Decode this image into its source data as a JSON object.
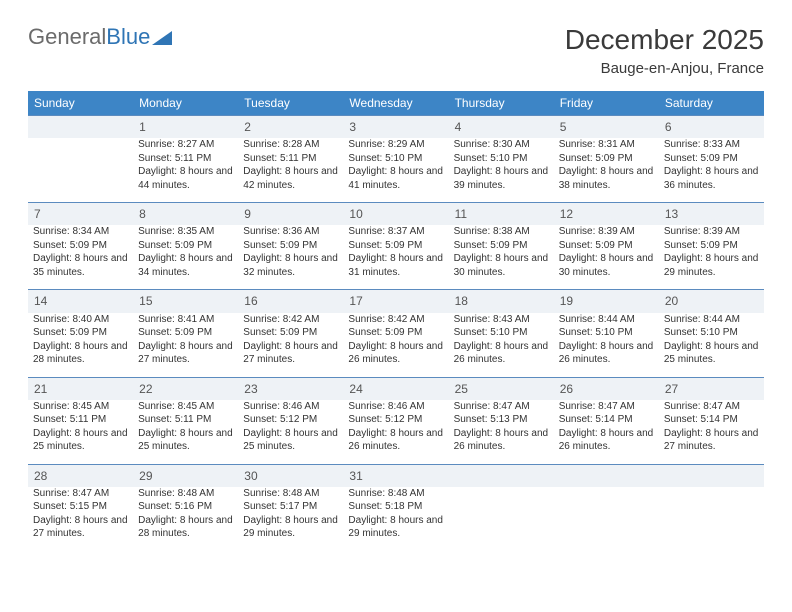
{
  "brand": {
    "part1": "General",
    "part2": "Blue"
  },
  "title": "December 2025",
  "location": "Bauge-en-Anjou, France",
  "colors": {
    "header_bg": "#3d85c6",
    "header_text": "#ffffff",
    "daynum_bg": "#eef2f6",
    "row_border": "#5b8bbf",
    "text": "#333333",
    "brand_gray": "#6b6b6b",
    "brand_blue": "#2f75b5"
  },
  "weekdays": [
    "Sunday",
    "Monday",
    "Tuesday",
    "Wednesday",
    "Thursday",
    "Friday",
    "Saturday"
  ],
  "weeks": [
    {
      "nums": [
        "",
        "1",
        "2",
        "3",
        "4",
        "5",
        "6"
      ],
      "cells": [
        null,
        {
          "sunrise": "Sunrise: 8:27 AM",
          "sunset": "Sunset: 5:11 PM",
          "daylight": "Daylight: 8 hours and 44 minutes."
        },
        {
          "sunrise": "Sunrise: 8:28 AM",
          "sunset": "Sunset: 5:11 PM",
          "daylight": "Daylight: 8 hours and 42 minutes."
        },
        {
          "sunrise": "Sunrise: 8:29 AM",
          "sunset": "Sunset: 5:10 PM",
          "daylight": "Daylight: 8 hours and 41 minutes."
        },
        {
          "sunrise": "Sunrise: 8:30 AM",
          "sunset": "Sunset: 5:10 PM",
          "daylight": "Daylight: 8 hours and 39 minutes."
        },
        {
          "sunrise": "Sunrise: 8:31 AM",
          "sunset": "Sunset: 5:09 PM",
          "daylight": "Daylight: 8 hours and 38 minutes."
        },
        {
          "sunrise": "Sunrise: 8:33 AM",
          "sunset": "Sunset: 5:09 PM",
          "daylight": "Daylight: 8 hours and 36 minutes."
        }
      ]
    },
    {
      "nums": [
        "7",
        "8",
        "9",
        "10",
        "11",
        "12",
        "13"
      ],
      "cells": [
        {
          "sunrise": "Sunrise: 8:34 AM",
          "sunset": "Sunset: 5:09 PM",
          "daylight": "Daylight: 8 hours and 35 minutes."
        },
        {
          "sunrise": "Sunrise: 8:35 AM",
          "sunset": "Sunset: 5:09 PM",
          "daylight": "Daylight: 8 hours and 34 minutes."
        },
        {
          "sunrise": "Sunrise: 8:36 AM",
          "sunset": "Sunset: 5:09 PM",
          "daylight": "Daylight: 8 hours and 32 minutes."
        },
        {
          "sunrise": "Sunrise: 8:37 AM",
          "sunset": "Sunset: 5:09 PM",
          "daylight": "Daylight: 8 hours and 31 minutes."
        },
        {
          "sunrise": "Sunrise: 8:38 AM",
          "sunset": "Sunset: 5:09 PM",
          "daylight": "Daylight: 8 hours and 30 minutes."
        },
        {
          "sunrise": "Sunrise: 8:39 AM",
          "sunset": "Sunset: 5:09 PM",
          "daylight": "Daylight: 8 hours and 30 minutes."
        },
        {
          "sunrise": "Sunrise: 8:39 AM",
          "sunset": "Sunset: 5:09 PM",
          "daylight": "Daylight: 8 hours and 29 minutes."
        }
      ]
    },
    {
      "nums": [
        "14",
        "15",
        "16",
        "17",
        "18",
        "19",
        "20"
      ],
      "cells": [
        {
          "sunrise": "Sunrise: 8:40 AM",
          "sunset": "Sunset: 5:09 PM",
          "daylight": "Daylight: 8 hours and 28 minutes."
        },
        {
          "sunrise": "Sunrise: 8:41 AM",
          "sunset": "Sunset: 5:09 PM",
          "daylight": "Daylight: 8 hours and 27 minutes."
        },
        {
          "sunrise": "Sunrise: 8:42 AM",
          "sunset": "Sunset: 5:09 PM",
          "daylight": "Daylight: 8 hours and 27 minutes."
        },
        {
          "sunrise": "Sunrise: 8:42 AM",
          "sunset": "Sunset: 5:09 PM",
          "daylight": "Daylight: 8 hours and 26 minutes."
        },
        {
          "sunrise": "Sunrise: 8:43 AM",
          "sunset": "Sunset: 5:10 PM",
          "daylight": "Daylight: 8 hours and 26 minutes."
        },
        {
          "sunrise": "Sunrise: 8:44 AM",
          "sunset": "Sunset: 5:10 PM",
          "daylight": "Daylight: 8 hours and 26 minutes."
        },
        {
          "sunrise": "Sunrise: 8:44 AM",
          "sunset": "Sunset: 5:10 PM",
          "daylight": "Daylight: 8 hours and 25 minutes."
        }
      ]
    },
    {
      "nums": [
        "21",
        "22",
        "23",
        "24",
        "25",
        "26",
        "27"
      ],
      "cells": [
        {
          "sunrise": "Sunrise: 8:45 AM",
          "sunset": "Sunset: 5:11 PM",
          "daylight": "Daylight: 8 hours and 25 minutes."
        },
        {
          "sunrise": "Sunrise: 8:45 AM",
          "sunset": "Sunset: 5:11 PM",
          "daylight": "Daylight: 8 hours and 25 minutes."
        },
        {
          "sunrise": "Sunrise: 8:46 AM",
          "sunset": "Sunset: 5:12 PM",
          "daylight": "Daylight: 8 hours and 25 minutes."
        },
        {
          "sunrise": "Sunrise: 8:46 AM",
          "sunset": "Sunset: 5:12 PM",
          "daylight": "Daylight: 8 hours and 26 minutes."
        },
        {
          "sunrise": "Sunrise: 8:47 AM",
          "sunset": "Sunset: 5:13 PM",
          "daylight": "Daylight: 8 hours and 26 minutes."
        },
        {
          "sunrise": "Sunrise: 8:47 AM",
          "sunset": "Sunset: 5:14 PM",
          "daylight": "Daylight: 8 hours and 26 minutes."
        },
        {
          "sunrise": "Sunrise: 8:47 AM",
          "sunset": "Sunset: 5:14 PM",
          "daylight": "Daylight: 8 hours and 27 minutes."
        }
      ]
    },
    {
      "nums": [
        "28",
        "29",
        "30",
        "31",
        "",
        "",
        ""
      ],
      "cells": [
        {
          "sunrise": "Sunrise: 8:47 AM",
          "sunset": "Sunset: 5:15 PM",
          "daylight": "Daylight: 8 hours and 27 minutes."
        },
        {
          "sunrise": "Sunrise: 8:48 AM",
          "sunset": "Sunset: 5:16 PM",
          "daylight": "Daylight: 8 hours and 28 minutes."
        },
        {
          "sunrise": "Sunrise: 8:48 AM",
          "sunset": "Sunset: 5:17 PM",
          "daylight": "Daylight: 8 hours and 29 minutes."
        },
        {
          "sunrise": "Sunrise: 8:48 AM",
          "sunset": "Sunset: 5:18 PM",
          "daylight": "Daylight: 8 hours and 29 minutes."
        },
        null,
        null,
        null
      ]
    }
  ]
}
